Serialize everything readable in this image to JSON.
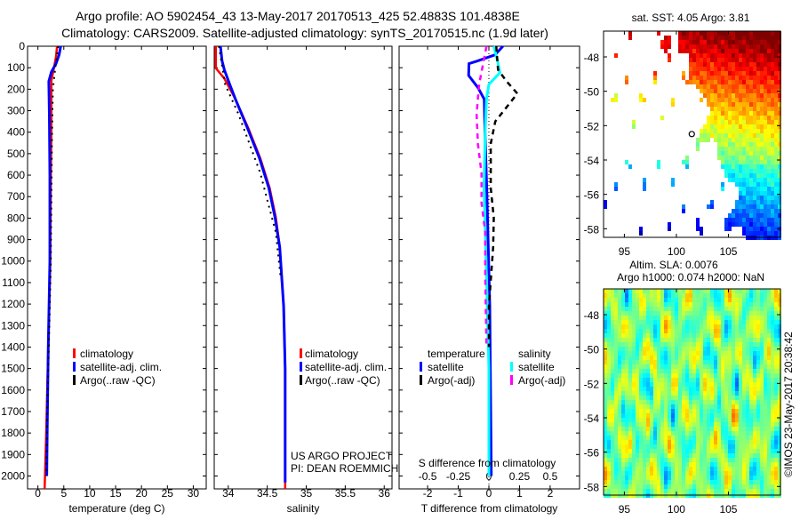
{
  "title": {
    "line1": "Argo profile: AO 5902454_43 13-May-2017 20170513_425 52.4883S 101.4838E",
    "line2": "Climatology: CARS2009. Satellite-adjusted climatology: synTS_20170515.nc (1.9d later)"
  },
  "colors": {
    "climatology": "#ff0000",
    "satellite": "#0000ff",
    "argo": "#000000",
    "sal_satellite": "#00ffff",
    "sal_argo": "#ff00ff"
  },
  "chart_data": [
    {
      "type": "line",
      "xlabel": "temperature (deg C)",
      "ylabel": "",
      "xlim": [
        -2,
        32.5
      ],
      "ylim": [
        2060,
        0
      ],
      "xticks": [
        0,
        5,
        10,
        15,
        20,
        25,
        30
      ],
      "yticks": [
        0,
        100,
        200,
        300,
        400,
        500,
        600,
        700,
        800,
        900,
        1000,
        1100,
        1200,
        1300,
        1400,
        1500,
        1600,
        1700,
        1800,
        1900,
        2000
      ],
      "legend": [
        "climatology",
        "satellite-adj. clim.",
        "Argo(..raw -QC)"
      ],
      "series": [
        {
          "name": "climatology",
          "style": "solid",
          "color": "#ff0000",
          "depth": [
            0,
            50,
            100,
            160,
            250,
            400,
            600,
            1000,
            1400,
            1800,
            2060
          ],
          "values": [
            3.7,
            3.5,
            3.1,
            2.6,
            2.6,
            2.6,
            2.5,
            2.4,
            2.0,
            1.6,
            1.3
          ]
        },
        {
          "name": "satellite-adj. clim.",
          "style": "solid",
          "color": "#0000ff",
          "depth": [
            0,
            40,
            81,
            120,
            164,
            315,
            600,
            1000,
            1400,
            1800,
            2000
          ],
          "values": [
            4.4,
            4.1,
            3.5,
            2.6,
            2.1,
            2.2,
            2.3,
            2.3,
            2.0,
            1.8,
            1.7
          ]
        },
        {
          "name": "Argo(..raw -QC)",
          "style": "dotted",
          "color": "#000000",
          "depth": [
            0,
            60,
            110,
            200,
            300,
            450,
            700,
            1000,
            1300,
            1600,
            2000
          ],
          "values": [
            3.9,
            3.6,
            3.3,
            2.9,
            2.8,
            2.7,
            2.6,
            2.5,
            2.2,
            1.9,
            1.6
          ]
        }
      ]
    },
    {
      "type": "line",
      "xlabel": "salinity",
      "xlim": [
        33.82,
        36.1
      ],
      "ylim": [
        2060,
        0
      ],
      "xticks": [
        "34",
        "34.5",
        "35",
        "35.5",
        "36"
      ],
      "legend": [
        "climatology",
        "satellite-adj. clim.",
        "Argo(..raw -QC)"
      ],
      "annotation": [
        "US ARGO PROJECT",
        "PI: DEAN ROEMMICH"
      ],
      "series": [
        {
          "name": "climatology",
          "color": "#ff0000",
          "depth": [
            0,
            102,
            150,
            245,
            384,
            521,
            659,
            797,
            935,
            1210,
            1500,
            2060
          ],
          "values": [
            33.84,
            33.84,
            33.95,
            34.09,
            34.26,
            34.41,
            34.53,
            34.61,
            34.66,
            34.71,
            34.73,
            34.73
          ]
        },
        {
          "name": "satellite-adj. clim.",
          "color": "#0000ff",
          "depth": [
            0,
            68,
            110,
            178,
            245,
            384,
            521,
            659,
            797,
            935,
            1210,
            1500,
            2030
          ],
          "values": [
            33.9,
            33.92,
            33.95,
            34.02,
            34.09,
            34.25,
            34.4,
            34.52,
            34.6,
            34.66,
            34.71,
            34.73,
            34.73
          ]
        },
        {
          "name": "Argo(..raw -QC)",
          "color": "#000000",
          "depth": [
            0,
            178,
            315,
            452,
            590,
            728,
            866,
            1072
          ],
          "values": [
            33.88,
            33.96,
            34.13,
            34.27,
            34.41,
            34.51,
            34.61,
            34.67
          ]
        }
      ]
    },
    {
      "type": "line",
      "xlabel": "T difference from climatology",
      "top_xlabel": "S difference from climatology",
      "xlim": [
        -2.93,
        2.96
      ],
      "top_xlim": [
        -0.733,
        0.74
      ],
      "ylim": [
        2060,
        0
      ],
      "xticks": [
        "-2",
        "-1",
        "0",
        "1",
        "2"
      ],
      "top_xticks": [
        "-0.5",
        "-0.25",
        "0",
        "0.25",
        "0.5"
      ],
      "legend": {
        "temperature": "temperature",
        "salinity": "salinity",
        "sat": "satellite",
        "argo": "Argo(-adj)"
      },
      "series": [
        {
          "name": "temperature satellite",
          "axis": "T",
          "color": "#0000ff",
          "depth": [
            0,
            40,
            68,
            81,
            136,
            192,
            247,
            385,
            660,
            1210,
            2000
          ],
          "values": [
            0.46,
            0.2,
            -0.36,
            -0.65,
            -0.66,
            -0.36,
            -0.15,
            -0.13,
            -0.07,
            0.03,
            0.08
          ]
        },
        {
          "name": "salinity satellite",
          "axis": "S",
          "color": "#00ffff",
          "depth": [
            0,
            68,
            123,
            178,
            247,
            385,
            660,
            1072,
            1500,
            2000
          ],
          "values": [
            0.04,
            0.07,
            0.09,
            0.0,
            -0.02,
            -0.03,
            -0.04,
            -0.02,
            0.0,
            0.0
          ]
        },
        {
          "name": "temperature Argo(-adj)",
          "axis": "T",
          "color": "#000000",
          "depth": [
            0,
            110,
            165,
            220,
            289,
            350,
            453,
            660,
            797,
            935,
            1210,
            1400
          ],
          "values": [
            0.24,
            0.3,
            0.59,
            0.93,
            0.55,
            0.21,
            0.06,
            0.06,
            0.16,
            0.14,
            0.0,
            0.0
          ]
        },
        {
          "name": "salinity Argo(-adj)",
          "axis": "S",
          "color": "#ff00ff",
          "depth": [
            0,
            178,
            316,
            453,
            590,
            728,
            866,
            1072,
            1400
          ],
          "values": [
            -0.02,
            -0.08,
            -0.1,
            -0.09,
            -0.06,
            -0.06,
            -0.03,
            -0.03,
            -0.02
          ]
        }
      ]
    },
    {
      "type": "heatmap",
      "title": "sat. SST: 4.05 Argo: 3.81",
      "xlim": [
        93.0,
        110.0
      ],
      "ylim": [
        -58.5,
        -46.5
      ],
      "xticks": [
        "95",
        "100",
        "105"
      ],
      "yticks": [
        "-48",
        "-50",
        "-52",
        "-54",
        "-56",
        "-58"
      ],
      "argo_position": [
        101.48,
        -52.49
      ]
    },
    {
      "type": "heatmap",
      "title_line1": "Altim. SLA: 0.0076",
      "title_line2": "Argo h1000: 0.074 h2000: NaN",
      "xlim": [
        93.0,
        110.0
      ],
      "ylim": [
        -58.5,
        -46.5
      ],
      "xticks": [
        "95",
        "100",
        "105"
      ],
      "yticks": [
        "-48",
        "-50",
        "-52",
        "-54",
        "-56",
        "-58"
      ],
      "credit": "©IMOS 23-May-2017 20:38:42"
    }
  ]
}
